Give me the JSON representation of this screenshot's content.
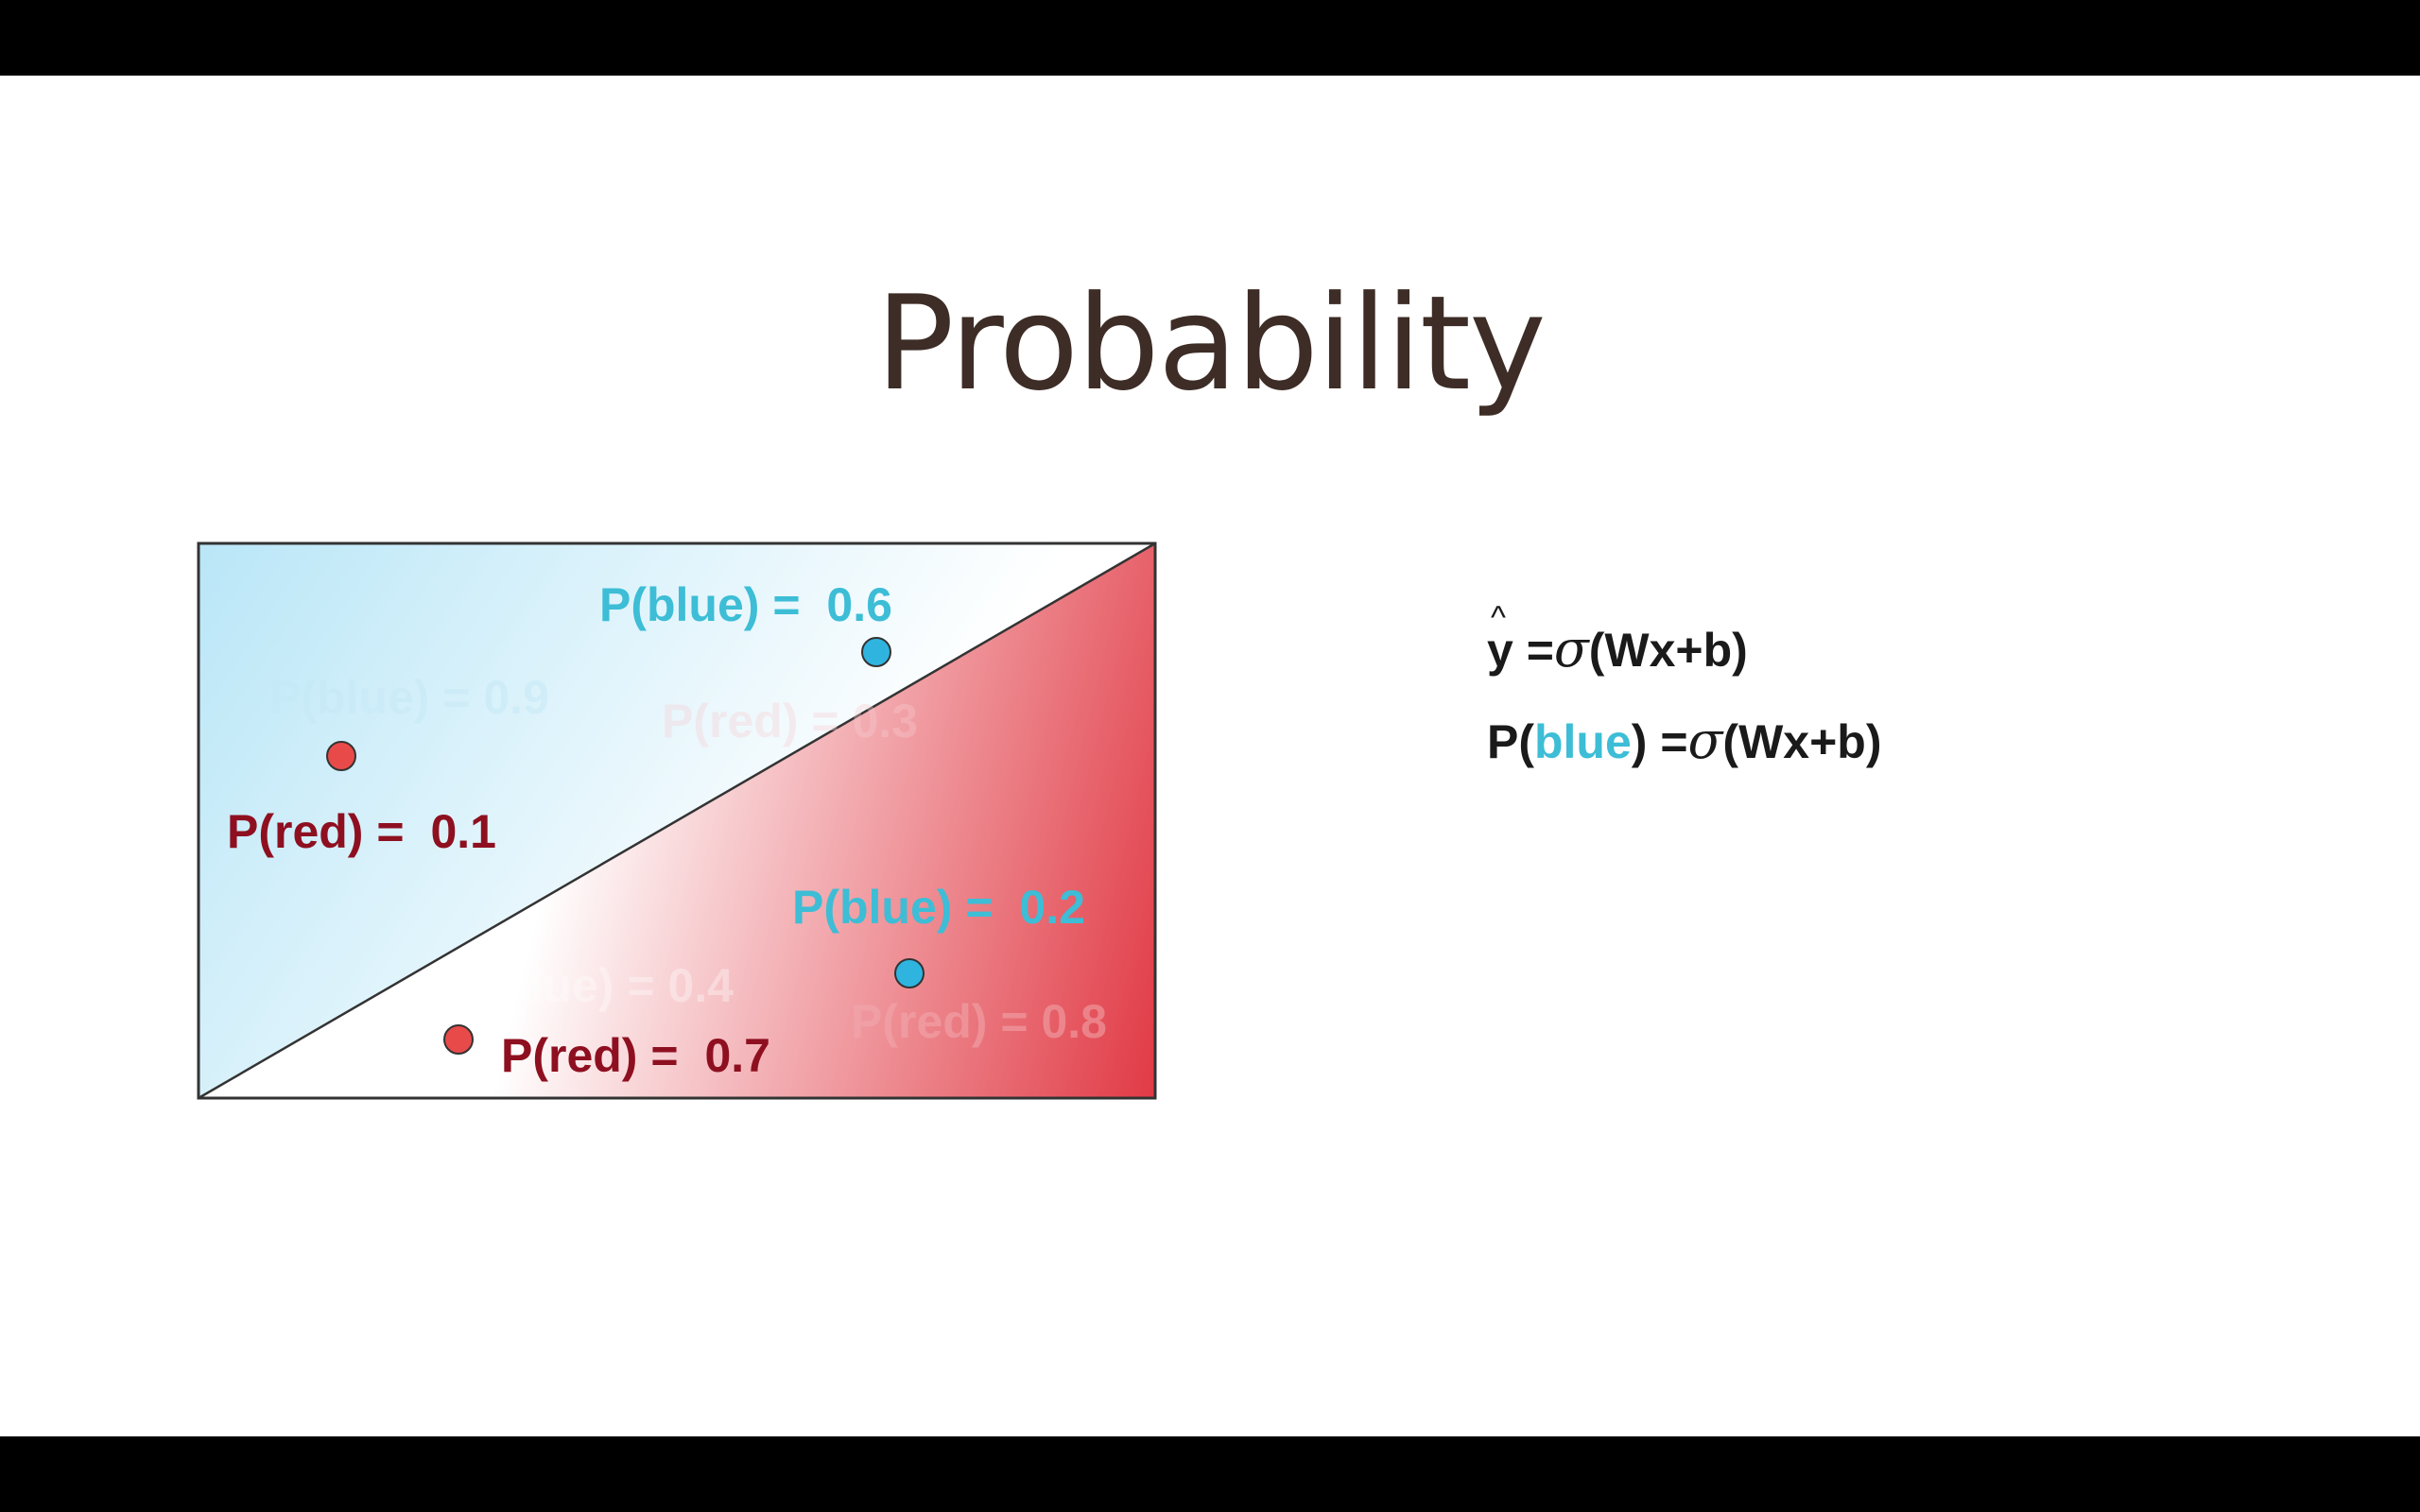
{
  "slide": {
    "title": "Probability"
  },
  "diagram": {
    "colors": {
      "blue_region": "#b9e6f7",
      "red_region": "#e13a45",
      "blue_text": "#3dbdd6",
      "red_text": "#8e1020",
      "red_point": "#e84a4a",
      "blue_point": "#2fb4e0",
      "border": "#333333"
    },
    "points": [
      {
        "class": "red",
        "label_prefix": "P(red) = ",
        "value": "0.1"
      },
      {
        "class": "blue",
        "label_prefix": "P(blue) = ",
        "value": "0.6"
      },
      {
        "class": "blue",
        "label_prefix": "P(blue) = ",
        "value": "0.2"
      },
      {
        "class": "red",
        "label_prefix": "P(red) = ",
        "value": "0.7"
      }
    ],
    "faint_labels": [
      "P(blue) = 0.9",
      "P(blue) = 0.4",
      "P(red) = 0.8",
      "P(red) = 0.3"
    ]
  },
  "formulas": {
    "line1": {
      "lhs": "y",
      "hat": "^",
      "eq": " =",
      "sigma": "σ",
      "rhs": "(Wx+b)"
    },
    "line2": {
      "p_open": "P(",
      "blue_word": "blue",
      "p_close": ") =",
      "sigma": "σ",
      "rhs": "(Wx+b)"
    }
  }
}
